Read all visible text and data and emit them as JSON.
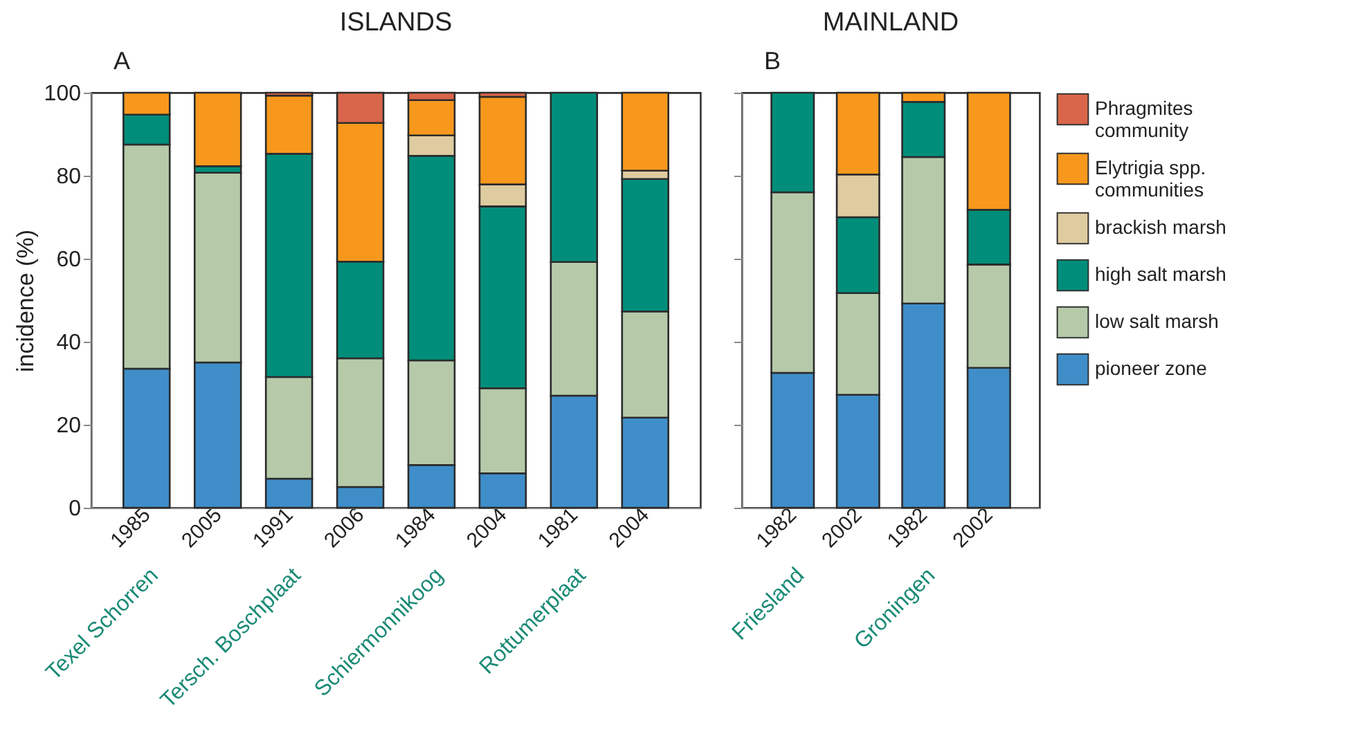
{
  "chart_data": [
    {
      "type": "bar",
      "title": "ISLANDS",
      "ylabel": "incidence (%)",
      "stacked": true,
      "legend": false,
      "ylim": [
        0,
        100
      ],
      "yticks": [
        0,
        20,
        40,
        60,
        80,
        100
      ],
      "categories": [
        "1985",
        "2005",
        "1991",
        "2006",
        "1984",
        "2004",
        "1981",
        "2004"
      ],
      "annotations": [
        "A",
        "Texel Schorren",
        "Tersch. Boschplaat",
        "Schiermonnikoog",
        "Rottumerplaat"
      ],
      "series": [
        {
          "color": "#3f8ec9",
          "values": [
            33.5,
            35,
            7,
            5,
            10.3,
            8.3,
            27,
            21.7
          ]
        },
        {
          "color": "#b6caa9",
          "values": [
            54,
            45.7,
            24.5,
            31,
            25.2,
            20.5,
            32.2,
            25.6
          ]
        },
        {
          "color": "#008e7b",
          "values": [
            7.2,
            1.6,
            53.8,
            23.3,
            49.3,
            43.8,
            40.8,
            31.9
          ]
        },
        {
          "color": "#dfcba0",
          "values": [
            null,
            null,
            null,
            null,
            4.9,
            5.3,
            null,
            2
          ]
        },
        {
          "color": "#f7981d",
          "values": [
            5.3,
            17.7,
            14,
            33.4,
            8.5,
            21.1,
            null,
            18.8
          ]
        },
        {
          "color": "#d9664a",
          "values": [
            null,
            null,
            0.7,
            7.3,
            1.8,
            1,
            null,
            null
          ]
        }
      ]
    },
    {
      "type": "bar",
      "title": "MAINLAND",
      "stacked": true,
      "legend": "right",
      "tick_labels": "x",
      "ylim": [
        0,
        100
      ],
      "yticks": [
        0,
        20,
        40,
        60,
        80,
        100
      ],
      "categories": [
        "1982",
        "2002",
        "1982",
        "2002"
      ],
      "annotations": [
        "B",
        "Friesland",
        "Groningen"
      ],
      "series": [
        {
          "name": "pioneer zone",
          "color": "#3f8ec9",
          "values": [
            32.5,
            27.2,
            49.2,
            33.7
          ]
        },
        {
          "name": "low salt marsh",
          "color": "#b6caa9",
          "values": [
            43.5,
            24.5,
            35.3,
            24.9
          ]
        },
        {
          "name": "high salt marsh",
          "color": "#008e7b",
          "values": [
            24,
            18.3,
            13.3,
            13.2
          ]
        },
        {
          "name": "brackish marsh",
          "color": "#dfcba0",
          "values": [
            null,
            10.3,
            null,
            null
          ]
        },
        {
          "name": "Elytrigia spp. communities",
          "color": "#f7981d",
          "values": [
            null,
            19.7,
            2.2,
            28.2
          ]
        },
        {
          "name": "Phragmites community",
          "color": "#d9664a",
          "values": [
            null,
            null,
            null,
            null
          ]
        }
      ]
    }
  ]
}
